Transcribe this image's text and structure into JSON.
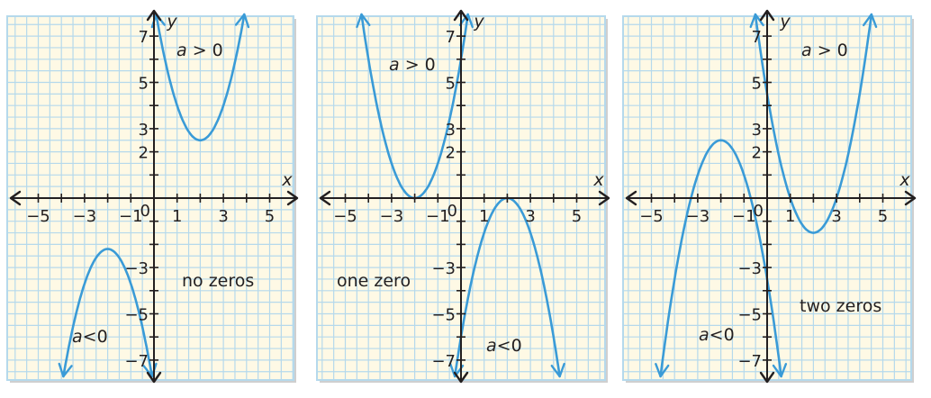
{
  "colors": {
    "grid_background": "#fef9e5",
    "grid_line": "#b5d9ec",
    "curve": "#3a9bd7",
    "axis": "#231f20",
    "shadow": "#cfcfcf"
  },
  "panels": [
    {
      "x_ticks": [
        "−5",
        "−3",
        "−1",
        "1",
        "3",
        "5"
      ],
      "y_ticks": [
        "7",
        "5",
        "3",
        "2",
        "−3",
        "−5",
        "−7"
      ],
      "origin_label": "0",
      "x_axis_label": "x",
      "y_axis_label": "y",
      "curves": [
        {
          "h": 2,
          "k": 2.5,
          "a": 1.5
        },
        {
          "h": -2,
          "k": -2.2,
          "a": -1.5
        }
      ],
      "labels": [
        {
          "var": "a",
          "op": " > ",
          "num": "0"
        },
        {
          "var": "a",
          "op": "<",
          "num": "0"
        },
        {
          "text": "no zeros"
        }
      ]
    },
    {
      "x_ticks": [
        "−5",
        "−3",
        "−1",
        "1",
        "3",
        "5"
      ],
      "y_ticks": [
        "7",
        "5",
        "3",
        "2",
        "−3",
        "−5",
        "−7"
      ],
      "origin_label": "0",
      "x_axis_label": "x",
      "y_axis_label": "y",
      "curves": [
        {
          "h": -2,
          "k": 0,
          "a": 1.5
        },
        {
          "h": 2,
          "k": 0,
          "a": -1.5
        }
      ],
      "labels": [
        {
          "var": "a",
          "op": " > ",
          "num": "0"
        },
        {
          "var": "a",
          "op": "<",
          "num": "0"
        },
        {
          "text": "one zero"
        }
      ]
    },
    {
      "x_ticks": [
        "−5",
        "−3",
        "−1",
        "1",
        "3",
        "5"
      ],
      "y_ticks": [
        "7",
        "5",
        "3",
        "2",
        "−3",
        "−5",
        "−7"
      ],
      "origin_label": "0",
      "x_axis_label": "x",
      "y_axis_label": "y",
      "curves": [
        {
          "h": 2,
          "k": -1.5,
          "a": 1.5
        },
        {
          "h": -2,
          "k": 2.5,
          "a": -1.5
        }
      ],
      "labels": [
        {
          "var": "a",
          "op": " > ",
          "num": "0"
        },
        {
          "var": "a",
          "op": "<",
          "num": "0"
        },
        {
          "text": "two zeros"
        }
      ]
    }
  ]
}
